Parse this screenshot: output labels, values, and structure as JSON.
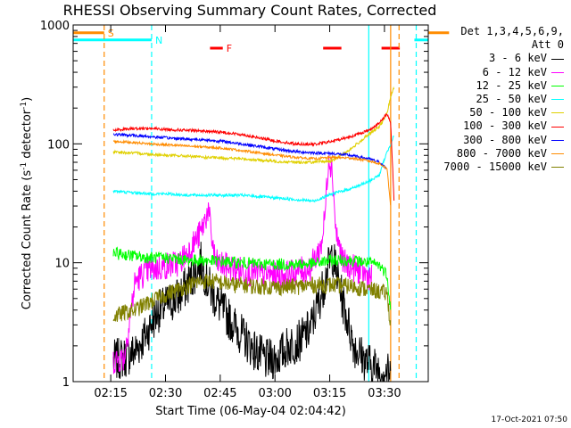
{
  "chart_data": {
    "type": "line",
    "title": "RHESSI Observing Summary Count Rates, Corrected",
    "xlabel": "Start Time (06-May-04 02:04:42)",
    "ylabel_main": "Corrected Count Rate (s",
    "ylabel_sup1": "-1",
    "ylabel_mid": " detector",
    "ylabel_sup2": "-1",
    "ylabel_end": ")",
    "y_scale": "log",
    "ylim": [
      1,
      1000
    ],
    "xlim": [
      "02:04:42",
      "03:42:00"
    ],
    "x_ticks": [
      {
        "t": 10.3,
        "label": "02:15"
      },
      {
        "t": 25.3,
        "label": "02:30"
      },
      {
        "t": 40.3,
        "label": "02:45"
      },
      {
        "t": 55.3,
        "label": "03:00"
      },
      {
        "t": 70.3,
        "label": "03:15"
      },
      {
        "t": 85.3,
        "label": "03:30"
      }
    ],
    "y_ticks": [
      {
        "v": 1,
        "label": "1"
      },
      {
        "v": 10,
        "label": "10"
      },
      {
        "v": 100,
        "label": "100"
      },
      {
        "v": 1000,
        "label": "1000"
      }
    ],
    "legend_header": [
      "Det 1,3,4,5,6,9,",
      "Att 0"
    ],
    "legend_placement": "right",
    "grid": false,
    "series": [
      {
        "name": "3 - 6 keV",
        "color": "#000000",
        "x": [
          11,
          14,
          17,
          20,
          23,
          26,
          29,
          32,
          35,
          38,
          41,
          44,
          47,
          50,
          53,
          56,
          59,
          62,
          65,
          68,
          71,
          74,
          77,
          80,
          83,
          86,
          87
        ],
        "y": [
          1.5,
          1.6,
          1.8,
          2.5,
          3.8,
          4.5,
          5.2,
          7,
          10,
          5.5,
          4,
          3,
          2.3,
          1.8,
          1.5,
          1.6,
          2.0,
          2.2,
          2.8,
          5.5,
          12,
          4.5,
          2.0,
          1.5,
          1.3,
          1.2,
          1.1
        ]
      },
      {
        "name": "6 - 12 keV",
        "color": "#ff00ff",
        "x": [
          11,
          14,
          17,
          20,
          23,
          26,
          29,
          32,
          35,
          37,
          38,
          39,
          41,
          44,
          47,
          50,
          53,
          56,
          59,
          62,
          65,
          68,
          69,
          70,
          71,
          72,
          74,
          77,
          80,
          82
        ],
        "y": [
          1.5,
          1.6,
          7,
          8.5,
          9,
          9.5,
          10,
          13,
          18,
          28,
          16,
          10,
          9.5,
          9,
          8.5,
          8,
          8,
          8,
          8,
          8.5,
          9,
          14,
          25,
          80,
          60,
          18,
          10,
          9,
          8,
          7.5
        ]
      },
      {
        "name": "12 - 25 keV",
        "color": "#00ff00",
        "x": [
          11,
          16,
          21,
          26,
          31,
          36,
          41,
          46,
          51,
          56,
          61,
          66,
          71,
          76,
          81,
          84,
          86,
          87
        ],
        "y": [
          12,
          11.5,
          11,
          11,
          10.5,
          10.5,
          10.2,
          10,
          9.8,
          9.7,
          9.7,
          9.8,
          10.5,
          10.5,
          10,
          9.5,
          8,
          4
        ]
      },
      {
        "name": "25 - 50 keV",
        "color": "#00ffff",
        "x": [
          11,
          16,
          21,
          26,
          31,
          36,
          41,
          46,
          51,
          56,
          61,
          66,
          71,
          76,
          81,
          84,
          85,
          86,
          87,
          88
        ],
        "y": [
          40,
          39,
          38,
          38,
          37,
          37,
          37,
          37,
          36,
          35,
          34,
          33,
          38,
          42,
          48,
          55,
          70,
          85,
          100,
          120
        ]
      },
      {
        "name": "50 - 100 keV",
        "color": "#e0d000",
        "x": [
          11,
          16,
          21,
          26,
          31,
          36,
          41,
          46,
          51,
          56,
          61,
          66,
          71,
          76,
          81,
          84,
          86,
          87,
          88
        ],
        "y": [
          85,
          84,
          82,
          80,
          79,
          77,
          76,
          75,
          73,
          71,
          70,
          70,
          72,
          90,
          120,
          140,
          180,
          250,
          300
        ]
      },
      {
        "name": "100 - 300 keV",
        "color": "#ff0000",
        "x": [
          11,
          16,
          21,
          26,
          31,
          36,
          41,
          46,
          51,
          56,
          61,
          66,
          71,
          76,
          81,
          84,
          86,
          87,
          88
        ],
        "y": [
          130,
          135,
          135,
          132,
          130,
          128,
          125,
          120,
          112,
          105,
          100,
          99,
          105,
          115,
          130,
          150,
          180,
          150,
          30
        ]
      },
      {
        "name": "300 - 800 keV",
        "color": "#0000ff",
        "x": [
          11,
          16,
          21,
          26,
          31,
          36,
          41,
          46,
          51,
          56,
          61,
          66,
          71,
          76,
          81,
          84,
          85,
          86
        ],
        "y": [
          120,
          118,
          115,
          112,
          110,
          108,
          105,
          100,
          95,
          90,
          86,
          84,
          83,
          80,
          75,
          70,
          65,
          62
        ]
      },
      {
        "name": "800 - 7000 keV",
        "color": "#ff8c00",
        "x": [
          11,
          16,
          21,
          26,
          31,
          36,
          41,
          46,
          51,
          56,
          61,
          66,
          71,
          76,
          81,
          84,
          86,
          87
        ],
        "y": [
          105,
          103,
          100,
          98,
          96,
          94,
          92,
          88,
          84,
          80,
          77,
          75,
          77,
          76,
          72,
          68,
          62,
          30
        ]
      },
      {
        "name": "7000 - 15000 keV",
        "color": "#808000",
        "x": [
          11,
          14,
          17,
          20,
          23,
          26,
          29,
          32,
          35,
          38,
          41,
          44,
          47,
          50,
          53,
          56,
          59,
          62,
          65,
          68,
          71,
          74,
          77,
          80,
          83,
          86,
          87
        ],
        "y": [
          3.5,
          3.8,
          4,
          4.5,
          5,
          5.5,
          6,
          6.5,
          7,
          7,
          6.8,
          6.5,
          6.5,
          6.3,
          6.3,
          6.2,
          6.3,
          6.3,
          6.5,
          6.5,
          6.5,
          6.4,
          6.3,
          6,
          5.8,
          5.5,
          3
        ]
      }
    ],
    "flags": [
      {
        "label": "S",
        "color": "#ff8c00",
        "t0": 0,
        "t1": 8.5,
        "y": 0.978
      },
      {
        "label": "N",
        "color": "#00ffff",
        "t0": 0,
        "t1": 21.5,
        "y": 0.958
      },
      {
        "label": "F",
        "color": "#ff0000",
        "t0": 37.5,
        "t1": 41,
        "y": 0.935
      },
      {
        "label": "",
        "color": "#ff0000",
        "t0": 84.5,
        "t1": 89.5,
        "y": 0.935
      },
      {
        "label": "",
        "color": "#ff0000",
        "t0": 68.5,
        "t1": 73.5,
        "y": 0.935
      },
      {
        "label": "",
        "color": "#00ffff",
        "t0": 93.5,
        "t1": 117,
        "y": 0.958
      },
      {
        "label": "",
        "color": "#ff8c00",
        "t0": 103,
        "t1": 117,
        "y": 0.978
      }
    ],
    "vlines": [
      {
        "t": 8.5,
        "color": "#ff8c00",
        "style": "dashed"
      },
      {
        "t": 21.5,
        "color": "#00ffff",
        "style": "dashed"
      },
      {
        "t": 81,
        "color": "#00ffff",
        "style": "solid"
      },
      {
        "t": 87,
        "color": "#ff8c00",
        "style": "solid"
      },
      {
        "t": 89.3,
        "color": "#ff8c00",
        "style": "dashed"
      },
      {
        "t": 94,
        "color": "#00ffff",
        "style": "dashed"
      }
    ]
  },
  "footer_stamp": "17-Oct-2021 07:50"
}
